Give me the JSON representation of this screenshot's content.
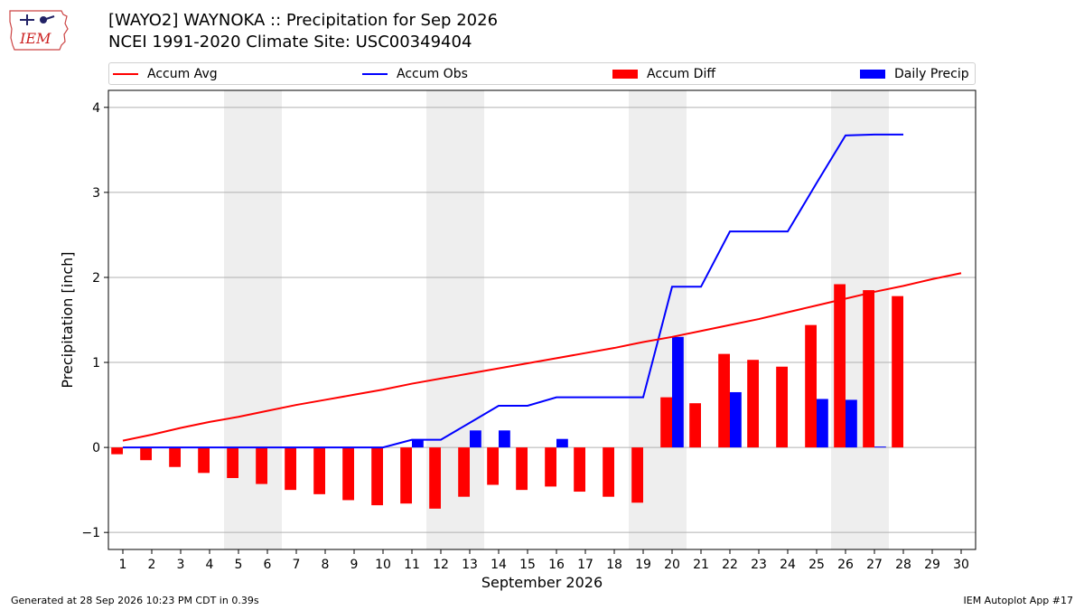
{
  "header": {
    "logo_text": "IEM",
    "title_line1": "[WAYO2] WAYNOKA :: Precipitation for Sep 2026",
    "title_line2": "NCEI 1991-2020 Climate Site: USC00349404"
  },
  "footer": {
    "generated": "Generated at 28 Sep 2026 10:23 PM CDT in 0.39s",
    "app": "IEM Autoplot App #17"
  },
  "colors": {
    "accum_avg": "#ff0000",
    "accum_obs": "#0000ff",
    "accum_diff": "#ff0000",
    "daily_precip": "#0000ff",
    "weekend_shade": "#eeeeee",
    "grid": "#b0b0b0"
  },
  "chart_data": {
    "type": "bar",
    "xlabel": "September 2026",
    "ylabel": "Precipitation [inch]",
    "ylim": [
      -1.2,
      4.2
    ],
    "yticks": [
      -1,
      0,
      1,
      2,
      3,
      4
    ],
    "ytick_labels": [
      "−1",
      "0",
      "1",
      "2",
      "3",
      "4"
    ],
    "xlim": [
      0.5,
      30.5
    ],
    "xticks": [
      1,
      2,
      3,
      4,
      5,
      6,
      7,
      8,
      9,
      10,
      11,
      12,
      13,
      14,
      15,
      16,
      17,
      18,
      19,
      20,
      21,
      22,
      23,
      24,
      25,
      26,
      27,
      28,
      29,
      30
    ],
    "grid": "horizontal",
    "legend_placement": "top",
    "legend": [
      "Accum Avg",
      "Accum Obs",
      "Accum Diff",
      "Daily Precip"
    ],
    "weekend_shading": [
      [
        4.5,
        6.5
      ],
      [
        11.5,
        13.5
      ],
      [
        18.5,
        20.5
      ],
      [
        25.5,
        27.5
      ]
    ],
    "series": [
      {
        "name": "Accum Avg",
        "kind": "line",
        "x": [
          1,
          2,
          3,
          4,
          5,
          6,
          7,
          8,
          9,
          10,
          11,
          12,
          13,
          14,
          15,
          16,
          17,
          18,
          19,
          20,
          21,
          22,
          23,
          24,
          25,
          26,
          27,
          28,
          29,
          30
        ],
        "values": [
          0.08,
          0.15,
          0.23,
          0.3,
          0.36,
          0.43,
          0.5,
          0.56,
          0.62,
          0.68,
          0.75,
          0.81,
          0.87,
          0.93,
          0.99,
          1.05,
          1.11,
          1.17,
          1.24,
          1.3,
          1.37,
          1.44,
          1.51,
          1.59,
          1.67,
          1.75,
          1.83,
          1.9,
          1.98,
          2.05
        ]
      },
      {
        "name": "Accum Obs",
        "kind": "line",
        "x": [
          1,
          2,
          3,
          4,
          5,
          6,
          7,
          8,
          9,
          10,
          11,
          12,
          13,
          14,
          15,
          16,
          17,
          18,
          19,
          20,
          21,
          22,
          23,
          24,
          25,
          26,
          27,
          28
        ],
        "values": [
          0.0,
          0.0,
          0.0,
          0.0,
          0.0,
          0.0,
          0.0,
          0.0,
          0.0,
          0.0,
          0.09,
          0.09,
          0.29,
          0.49,
          0.49,
          0.59,
          0.59,
          0.59,
          0.59,
          1.89,
          1.89,
          2.54,
          2.54,
          2.54,
          3.11,
          3.67,
          3.68,
          3.68
        ]
      },
      {
        "name": "Accum Diff",
        "kind": "bar",
        "x": [
          1,
          2,
          3,
          4,
          5,
          6,
          7,
          8,
          9,
          10,
          11,
          12,
          13,
          14,
          15,
          16,
          17,
          18,
          19,
          20,
          21,
          22,
          23,
          24,
          25,
          26,
          27,
          28
        ],
        "values": [
          -0.08,
          -0.15,
          -0.23,
          -0.3,
          -0.36,
          -0.43,
          -0.5,
          -0.55,
          -0.62,
          -0.68,
          -0.66,
          -0.72,
          -0.58,
          -0.44,
          -0.5,
          -0.46,
          -0.52,
          -0.58,
          -0.65,
          0.59,
          0.52,
          1.1,
          1.03,
          0.95,
          1.44,
          1.92,
          1.85,
          1.78
        ]
      },
      {
        "name": "Daily Precip",
        "kind": "bar",
        "x": [
          1,
          2,
          3,
          4,
          5,
          6,
          7,
          8,
          9,
          10,
          11,
          12,
          13,
          14,
          15,
          16,
          17,
          18,
          19,
          20,
          21,
          22,
          23,
          24,
          25,
          26,
          27,
          28
        ],
        "values": [
          0,
          0,
          0,
          0,
          0,
          0,
          0,
          0,
          0,
          0,
          0.09,
          0,
          0.2,
          0.2,
          0,
          0.1,
          0,
          0,
          0,
          1.3,
          0,
          0.65,
          0,
          0,
          0.57,
          0.56,
          0.01,
          0
        ]
      }
    ]
  }
}
